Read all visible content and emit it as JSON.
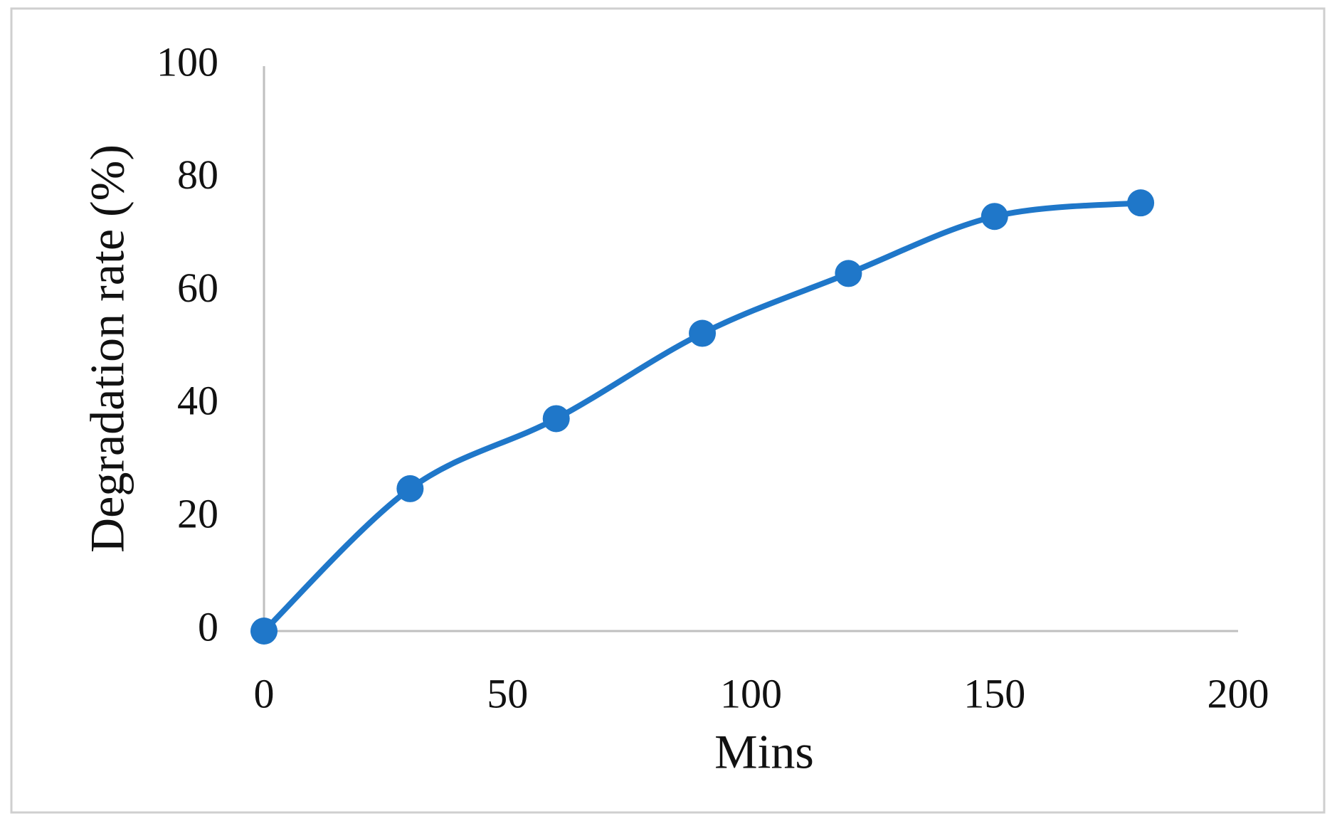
{
  "chart_data": {
    "type": "line",
    "x_label": "Mins",
    "y_label": "Degradation rate (%)",
    "x": [
      0,
      30,
      60,
      90,
      120,
      150,
      180
    ],
    "values": [
      0,
      25.2,
      37.6,
      52.7,
      63.3,
      73.4,
      75.8
    ],
    "color": "#1f77c9",
    "smooth": true,
    "markers": true,
    "grid": false,
    "xlim": [
      0,
      200
    ],
    "xticks": [
      0,
      50,
      100,
      150,
      200
    ],
    "ylim": [
      0,
      100
    ],
    "yticks": [
      0,
      20,
      40,
      60,
      80,
      100
    ]
  }
}
